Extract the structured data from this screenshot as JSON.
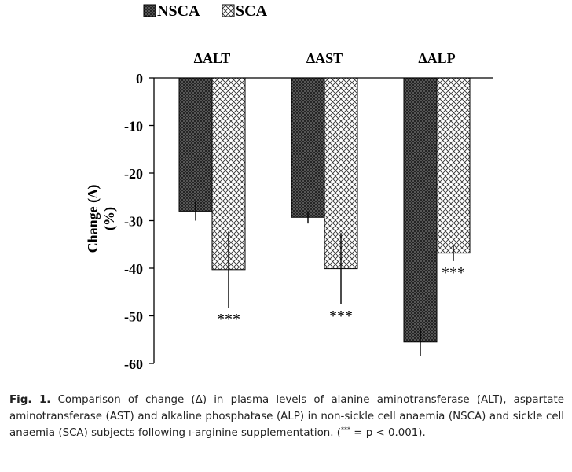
{
  "chart_data": {
    "type": "bar",
    "categories": [
      "ΔALT",
      "ΔAST",
      "ΔALP"
    ],
    "series": [
      {
        "name": "NSCA",
        "values": [
          -28,
          -29.3,
          -55.5
        ],
        "errors": [
          2,
          1.3,
          3
        ]
      },
      {
        "name": "SCA",
        "values": [
          -40.3,
          -40.1,
          -36.8
        ],
        "errors": [
          8,
          7.5,
          1.7
        ]
      }
    ],
    "significance": [
      "***",
      "***",
      "***"
    ],
    "ylabel_line1": "Change (Δ)",
    "ylabel_line2": "(%)",
    "yticks": [
      0,
      -10,
      -20,
      -30,
      -40,
      -50,
      -60
    ],
    "ylim": [
      -60,
      0
    ],
    "legend_position": "top-left",
    "series_fills": {
      "NSCA": "dark-crosshatch",
      "SCA": "light-crosshatch"
    },
    "colors": {
      "NSCA": "#222222",
      "SCA": "#ffffff",
      "axis": "#000000"
    }
  },
  "caption": {
    "label": "Fig. 1.",
    "part1": "Comparison of change (Δ) in plasma levels of alanine aminotransferase (ALT), aspartate aminotransferase (AST) and alkaline phosphatase (ALP) in non-sickle cell anaemia (NSCA) and sickle cell anaemia (SCA) subjects following ",
    "prefix": "l",
    "part2": "-arginine supplementation. (",
    "stars": "***",
    "part3": " = p < 0.001)."
  }
}
